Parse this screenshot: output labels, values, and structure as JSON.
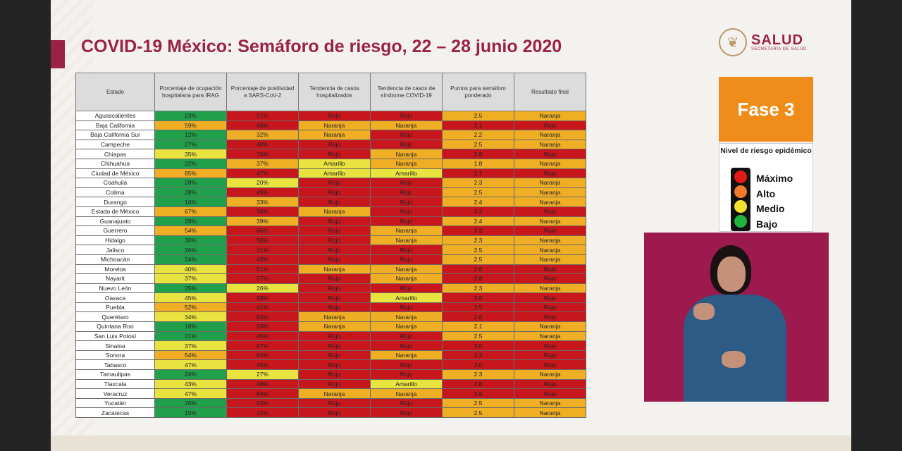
{
  "title": "COVID-19 México: Semáforo de riesgo, 22 – 28 junio 2020",
  "logo": {
    "main": "SALUD",
    "sub": "SECRETARÍA DE SALUD",
    "seal_icon": "❦"
  },
  "table": {
    "headers": [
      "Estado",
      "Porcentaje de ocupación hospitalaria para IRAG",
      "Porcentaje de positividad a SARS-CoV-2",
      "Tendencia de casos hospitalizados",
      "Tendencia de casos de síndrome COVID-19",
      "Puntos para semáforo ponderado",
      "Resultado final"
    ],
    "color_key": {
      "g": "#21a04b",
      "y": "#e9e33f",
      "o": "#f0ae25",
      "r": "#c8161d"
    },
    "rows": [
      [
        "Aguascalientes",
        "23%",
        "g",
        "51%",
        "r",
        "Rojo",
        "r",
        "Rojo",
        "r",
        "2.5",
        "o",
        "Naranja",
        "o"
      ],
      [
        "Baja California",
        "59%",
        "o",
        "60%",
        "r",
        "Naranja",
        "o",
        "Naranja",
        "o",
        "3.1",
        "r",
        "Rojo",
        "r"
      ],
      [
        "Baja California Sur",
        "12%",
        "g",
        "32%",
        "o",
        "Naranja",
        "o",
        "Rojo",
        "r",
        "2.2",
        "o",
        "Naranja",
        "o"
      ],
      [
        "Campeche",
        "27%",
        "g",
        "48%",
        "r",
        "Rojo",
        "r",
        "Rojo",
        "r",
        "2.5",
        "o",
        "Naranja",
        "o"
      ],
      [
        "Chiapas",
        "35%",
        "y",
        "76%",
        "r",
        "Rojo",
        "r",
        "Naranja",
        "o",
        "2.8",
        "r",
        "Rojo",
        "r"
      ],
      [
        "Chihuahua",
        "22%",
        "g",
        "37%",
        "o",
        "Amarillo",
        "y",
        "Naranja",
        "o",
        "1.8",
        "o",
        "Naranja",
        "o"
      ],
      [
        "Ciudad de México",
        "65%",
        "o",
        "47%",
        "r",
        "Amarillo",
        "y",
        "Amarillo",
        "y",
        "2.7",
        "r",
        "Rojo",
        "r"
      ],
      [
        "Coahuila",
        "28%",
        "g",
        "20%",
        "y",
        "Rojo",
        "r",
        "Rojo",
        "r",
        "2.3",
        "o",
        "Naranja",
        "o"
      ],
      [
        "Colima",
        "28%",
        "g",
        "49%",
        "r",
        "Rojo",
        "r",
        "Rojo",
        "r",
        "2.5",
        "o",
        "Naranja",
        "o"
      ],
      [
        "Durango",
        "16%",
        "g",
        "33%",
        "o",
        "Rojo",
        "r",
        "Rojo",
        "r",
        "2.4",
        "o",
        "Naranja",
        "o"
      ],
      [
        "Estado de México",
        "67%",
        "o",
        "56%",
        "r",
        "Naranja",
        "o",
        "Rojo",
        "r",
        "3.3",
        "r",
        "Rojo",
        "r"
      ],
      [
        "Guanajuato",
        "28%",
        "g",
        "39%",
        "o",
        "Rojo",
        "r",
        "Rojo",
        "r",
        "2.4",
        "o",
        "Naranja",
        "o"
      ],
      [
        "Guerrero",
        "54%",
        "o",
        "66%",
        "r",
        "Rojo",
        "r",
        "Naranja",
        "o",
        "3.3",
        "r",
        "Rojo",
        "r"
      ],
      [
        "Hidalgo",
        "30%",
        "g",
        "56%",
        "r",
        "Rojo",
        "r",
        "Naranja",
        "o",
        "2.3",
        "o",
        "Naranja",
        "o"
      ],
      [
        "Jalisco",
        "26%",
        "g",
        "41%",
        "r",
        "Rojo",
        "r",
        "Rojo",
        "r",
        "2.5",
        "o",
        "Naranja",
        "o"
      ],
      [
        "Michoacán",
        "24%",
        "g",
        "43%",
        "r",
        "Rojo",
        "r",
        "Rojo",
        "r",
        "2.5",
        "o",
        "Naranja",
        "o"
      ],
      [
        "Morelos",
        "40%",
        "y",
        "51%",
        "r",
        "Naranja",
        "o",
        "Naranja",
        "o",
        "2.6",
        "r",
        "Rojo",
        "r"
      ],
      [
        "Nayarit",
        "37%",
        "y",
        "57%",
        "r",
        "Rojo",
        "r",
        "Naranja",
        "o",
        "2.8",
        "r",
        "Rojo",
        "r"
      ],
      [
        "Nuevo León",
        "25%",
        "g",
        "26%",
        "y",
        "Rojo",
        "r",
        "Rojo",
        "r",
        "2.3",
        "o",
        "Naranja",
        "o"
      ],
      [
        "Oaxaca",
        "45%",
        "y",
        "58%",
        "r",
        "Rojo",
        "r",
        "Amarillo",
        "y",
        "2.6",
        "r",
        "Rojo",
        "r"
      ],
      [
        "Puebla",
        "52%",
        "o",
        "41%",
        "r",
        "Rojo",
        "r",
        "Rojo",
        "r",
        "3.5",
        "r",
        "Rojo",
        "r"
      ],
      [
        "Querétaro",
        "34%",
        "y",
        "54%",
        "r",
        "Naranja",
        "o",
        "Naranja",
        "o",
        "2.6",
        "r",
        "Rojo",
        "r"
      ],
      [
        "Quintana Roo",
        "18%",
        "g",
        "50%",
        "r",
        "Naranja",
        "o",
        "Naranja",
        "o",
        "2.1",
        "o",
        "Naranja",
        "o"
      ],
      [
        "San Luis Potosí",
        "21%",
        "g",
        "45%",
        "r",
        "Rojo",
        "r",
        "Rojo",
        "r",
        "2.5",
        "o",
        "Naranja",
        "o"
      ],
      [
        "Sinaloa",
        "37%",
        "y",
        "67%",
        "r",
        "Rojo",
        "r",
        "Rojo",
        "r",
        "3.0",
        "r",
        "Rojo",
        "r"
      ],
      [
        "Sonora",
        "54%",
        "o",
        "64%",
        "r",
        "Rojo",
        "r",
        "Naranja",
        "o",
        "3.3",
        "r",
        "Rojo",
        "r"
      ],
      [
        "Tabasco",
        "47%",
        "y",
        "45%",
        "r",
        "Rojo",
        "r",
        "Rojo",
        "r",
        "3.0",
        "r",
        "Rojo",
        "r"
      ],
      [
        "Tamaulipas",
        "24%",
        "g",
        "27%",
        "y",
        "Rojo",
        "r",
        "Rojo",
        "r",
        "2.3",
        "o",
        "Naranja",
        "o"
      ],
      [
        "Tlaxcala",
        "43%",
        "y",
        "48%",
        "r",
        "Rojo",
        "r",
        "Amarillo",
        "y",
        "2.6",
        "r",
        "Rojo",
        "r"
      ],
      [
        "Veracruz",
        "47%",
        "y",
        "64%",
        "r",
        "Naranja",
        "o",
        "Naranja",
        "o",
        "2.6",
        "r",
        "Rojo",
        "r"
      ],
      [
        "Yucatán",
        "26%",
        "g",
        "53%",
        "r",
        "Rojo",
        "r",
        "Rojo",
        "r",
        "2.5",
        "o",
        "Naranja",
        "o"
      ],
      [
        "Zacatecas",
        "15%",
        "g",
        "42%",
        "r",
        "Rojo",
        "r",
        "Rojo",
        "r",
        "2.5",
        "o",
        "Naranja",
        "o"
      ]
    ]
  },
  "phase": {
    "label": "Fase 3",
    "color": "#f08c1a"
  },
  "risk_legend": {
    "title": "Nivel de riesgo epidémico",
    "levels": [
      {
        "label": "Máximo",
        "color": "#e21a1a"
      },
      {
        "label": "Alto",
        "color": "#f07a2a"
      },
      {
        "label": "Medio",
        "color": "#f2e22c"
      },
      {
        "label": "Bajo",
        "color": "#1fb43c"
      }
    ]
  }
}
